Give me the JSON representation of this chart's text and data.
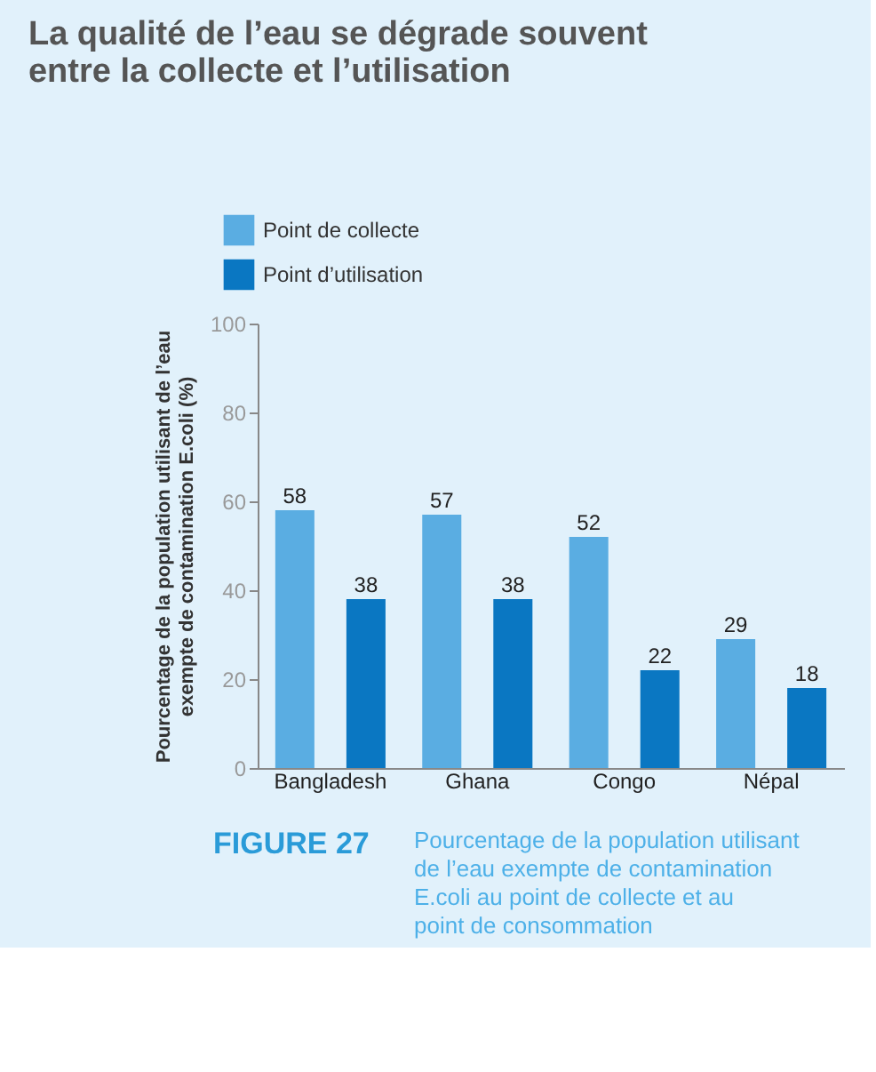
{
  "chart_data": {
    "type": "bar",
    "title": "La qualité de l’eau se dégrade souvent entre la collecte et l’utilisation",
    "ylabel": "Pourcentage de la population utilisant de l’eau exempte de contamination E.coli (%)",
    "categories": [
      "Bangladesh",
      "Ghana",
      "Congo",
      "Népal"
    ],
    "series": [
      {
        "name": "Point de collecte",
        "color": "#5aade2",
        "values": [
          58,
          57,
          52,
          29
        ]
      },
      {
        "name": "Point d’utilisation",
        "color": "#0a77c2",
        "values": [
          38,
          38,
          22,
          18
        ]
      }
    ],
    "ylim": [
      0,
      100
    ],
    "yticks": [
      0,
      20,
      40,
      60,
      80,
      100
    ],
    "grid": false,
    "legend": "top left",
    "data_labels": true,
    "annotations": [
      "FIGURE 27",
      "Pourcentage de la population utilisant de l’eau exempte de contamination E.coli au point de collecte et au point de consommation"
    ]
  }
}
